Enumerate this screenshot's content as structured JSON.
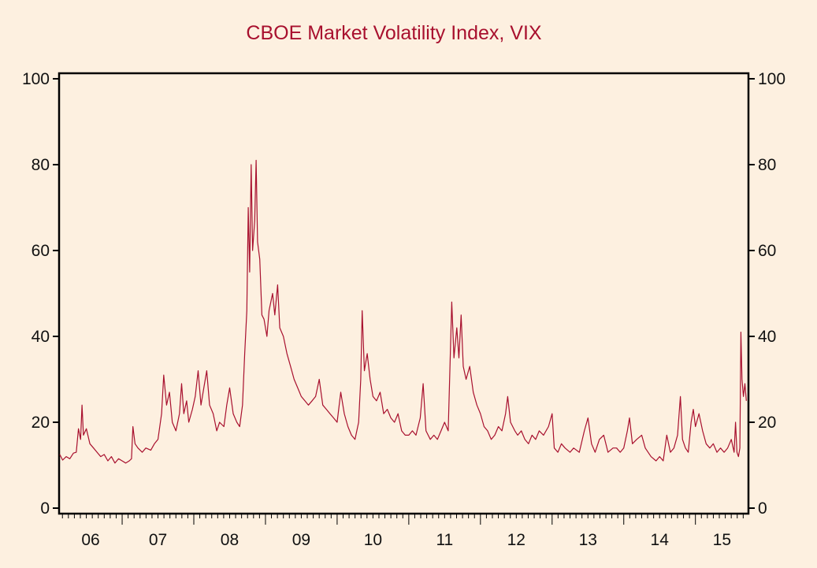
{
  "chart_data": {
    "type": "line",
    "title": "CBOE Market Volatility Index, VIX",
    "xlabel": "",
    "ylabel": "",
    "ylim": [
      0,
      100
    ],
    "yticks": [
      0,
      20,
      40,
      60,
      80,
      100
    ],
    "xlim": [
      2006.12,
      2015.74
    ],
    "xtick_labels": [
      "06",
      "07",
      "08",
      "09",
      "10",
      "11",
      "12",
      "13",
      "14",
      "15"
    ],
    "grid": false,
    "line_color": "#a8102e",
    "series": [
      {
        "name": "VIX",
        "points": [
          [
            2006.13,
            12.5
          ],
          [
            2006.17,
            11.2
          ],
          [
            2006.22,
            12.0
          ],
          [
            2006.27,
            11.5
          ],
          [
            2006.32,
            12.8
          ],
          [
            2006.36,
            13.0
          ],
          [
            2006.39,
            18.5
          ],
          [
            2006.42,
            16
          ],
          [
            2006.44,
            24
          ],
          [
            2006.46,
            17
          ],
          [
            2006.5,
            18.5
          ],
          [
            2006.55,
            15
          ],
          [
            2006.6,
            14
          ],
          [
            2006.65,
            13
          ],
          [
            2006.7,
            12
          ],
          [
            2006.75,
            12.5
          ],
          [
            2006.8,
            11
          ],
          [
            2006.85,
            12
          ],
          [
            2006.9,
            10.5
          ],
          [
            2006.95,
            11.5
          ],
          [
            2007.0,
            11
          ],
          [
            2007.05,
            10.5
          ],
          [
            2007.1,
            11
          ],
          [
            2007.13,
            11.5
          ],
          [
            2007.15,
            19
          ],
          [
            2007.18,
            15
          ],
          [
            2007.22,
            14
          ],
          [
            2007.28,
            13
          ],
          [
            2007.33,
            14
          ],
          [
            2007.4,
            13.5
          ],
          [
            2007.45,
            15
          ],
          [
            2007.5,
            16
          ],
          [
            2007.55,
            22
          ],
          [
            2007.58,
            31
          ],
          [
            2007.62,
            24
          ],
          [
            2007.66,
            27
          ],
          [
            2007.7,
            20
          ],
          [
            2007.75,
            18
          ],
          [
            2007.8,
            22
          ],
          [
            2007.83,
            29
          ],
          [
            2007.86,
            22
          ],
          [
            2007.9,
            25
          ],
          [
            2007.93,
            20
          ],
          [
            2007.98,
            23
          ],
          [
            2008.02,
            26
          ],
          [
            2008.06,
            32
          ],
          [
            2008.1,
            24
          ],
          [
            2008.14,
            28
          ],
          [
            2008.18,
            32
          ],
          [
            2008.22,
            24
          ],
          [
            2008.27,
            22
          ],
          [
            2008.32,
            18
          ],
          [
            2008.36,
            20
          ],
          [
            2008.42,
            19
          ],
          [
            2008.46,
            24
          ],
          [
            2008.5,
            28
          ],
          [
            2008.55,
            22
          ],
          [
            2008.6,
            20
          ],
          [
            2008.64,
            19
          ],
          [
            2008.68,
            24
          ],
          [
            2008.71,
            36
          ],
          [
            2008.74,
            46
          ],
          [
            2008.76,
            70
          ],
          [
            2008.78,
            55
          ],
          [
            2008.8,
            80
          ],
          [
            2008.82,
            60
          ],
          [
            2008.85,
            67
          ],
          [
            2008.87,
            81
          ],
          [
            2008.89,
            62
          ],
          [
            2008.92,
            58
          ],
          [
            2008.95,
            45
          ],
          [
            2008.98,
            44
          ],
          [
            2009.02,
            40
          ],
          [
            2009.05,
            46
          ],
          [
            2009.1,
            50
          ],
          [
            2009.13,
            45
          ],
          [
            2009.17,
            52
          ],
          [
            2009.2,
            42
          ],
          [
            2009.25,
            40
          ],
          [
            2009.3,
            36
          ],
          [
            2009.35,
            33
          ],
          [
            2009.4,
            30
          ],
          [
            2009.45,
            28
          ],
          [
            2009.5,
            26
          ],
          [
            2009.55,
            25
          ],
          [
            2009.6,
            24
          ],
          [
            2009.65,
            25
          ],
          [
            2009.7,
            26
          ],
          [
            2009.75,
            30
          ],
          [
            2009.8,
            24
          ],
          [
            2009.85,
            23
          ],
          [
            2009.9,
            22
          ],
          [
            2009.95,
            21
          ],
          [
            2010.0,
            20
          ],
          [
            2010.05,
            27
          ],
          [
            2010.1,
            22
          ],
          [
            2010.15,
            19
          ],
          [
            2010.2,
            17
          ],
          [
            2010.25,
            16
          ],
          [
            2010.3,
            20
          ],
          [
            2010.33,
            30
          ],
          [
            2010.35,
            46
          ],
          [
            2010.38,
            32
          ],
          [
            2010.42,
            36
          ],
          [
            2010.46,
            30
          ],
          [
            2010.5,
            26
          ],
          [
            2010.55,
            25
          ],
          [
            2010.6,
            27
          ],
          [
            2010.65,
            22
          ],
          [
            2010.7,
            23
          ],
          [
            2010.75,
            21
          ],
          [
            2010.8,
            20
          ],
          [
            2010.85,
            22
          ],
          [
            2010.9,
            18
          ],
          [
            2010.95,
            17
          ],
          [
            2011.0,
            17
          ],
          [
            2011.05,
            18
          ],
          [
            2011.1,
            17
          ],
          [
            2011.16,
            21
          ],
          [
            2011.2,
            29
          ],
          [
            2011.24,
            18
          ],
          [
            2011.3,
            16
          ],
          [
            2011.35,
            17
          ],
          [
            2011.4,
            16
          ],
          [
            2011.45,
            18
          ],
          [
            2011.5,
            20
          ],
          [
            2011.55,
            18
          ],
          [
            2011.58,
            36
          ],
          [
            2011.6,
            48
          ],
          [
            2011.63,
            35
          ],
          [
            2011.67,
            42
          ],
          [
            2011.7,
            35
          ],
          [
            2011.73,
            45
          ],
          [
            2011.76,
            33
          ],
          [
            2011.8,
            30
          ],
          [
            2011.85,
            33
          ],
          [
            2011.9,
            27
          ],
          [
            2011.95,
            24
          ],
          [
            2012.0,
            22
          ],
          [
            2012.05,
            19
          ],
          [
            2012.1,
            18
          ],
          [
            2012.15,
            16
          ],
          [
            2012.2,
            17
          ],
          [
            2012.25,
            19
          ],
          [
            2012.3,
            18
          ],
          [
            2012.35,
            22
          ],
          [
            2012.38,
            26
          ],
          [
            2012.42,
            20
          ],
          [
            2012.48,
            18
          ],
          [
            2012.52,
            17
          ],
          [
            2012.57,
            18
          ],
          [
            2012.62,
            16
          ],
          [
            2012.67,
            15
          ],
          [
            2012.72,
            17
          ],
          [
            2012.77,
            16
          ],
          [
            2012.82,
            18
          ],
          [
            2012.88,
            17
          ],
          [
            2012.95,
            19
          ],
          [
            2013.0,
            22
          ],
          [
            2013.03,
            14
          ],
          [
            2013.08,
            13
          ],
          [
            2013.13,
            15
          ],
          [
            2013.18,
            14
          ],
          [
            2013.25,
            13
          ],
          [
            2013.3,
            14
          ],
          [
            2013.38,
            13
          ],
          [
            2013.45,
            18
          ],
          [
            2013.5,
            21
          ],
          [
            2013.55,
            15
          ],
          [
            2013.6,
            13
          ],
          [
            2013.66,
            16
          ],
          [
            2013.72,
            17
          ],
          [
            2013.78,
            13
          ],
          [
            2013.85,
            14
          ],
          [
            2013.9,
            14
          ],
          [
            2013.95,
            13
          ],
          [
            2014.0,
            14
          ],
          [
            2014.05,
            18
          ],
          [
            2014.08,
            21
          ],
          [
            2014.12,
            15
          ],
          [
            2014.18,
            16
          ],
          [
            2014.25,
            17
          ],
          [
            2014.3,
            14
          ],
          [
            2014.38,
            12
          ],
          [
            2014.45,
            11
          ],
          [
            2014.5,
            12
          ],
          [
            2014.55,
            11
          ],
          [
            2014.6,
            17
          ],
          [
            2014.65,
            13
          ],
          [
            2014.7,
            14
          ],
          [
            2014.75,
            17
          ],
          [
            2014.79,
            26
          ],
          [
            2014.82,
            16
          ],
          [
            2014.86,
            14
          ],
          [
            2014.9,
            13
          ],
          [
            2014.94,
            20
          ],
          [
            2014.97,
            23
          ],
          [
            2015.0,
            19
          ],
          [
            2015.05,
            22
          ],
          [
            2015.1,
            18
          ],
          [
            2015.15,
            15
          ],
          [
            2015.2,
            14
          ],
          [
            2015.25,
            15
          ],
          [
            2015.3,
            13
          ],
          [
            2015.35,
            14
          ],
          [
            2015.4,
            13
          ],
          [
            2015.45,
            14
          ],
          [
            2015.5,
            16
          ],
          [
            2015.54,
            13
          ],
          [
            2015.56,
            20
          ],
          [
            2015.58,
            13
          ],
          [
            2015.6,
            12
          ],
          [
            2015.62,
            14
          ],
          [
            2015.635,
            41
          ],
          [
            2015.65,
            30
          ],
          [
            2015.67,
            26
          ],
          [
            2015.69,
            29
          ],
          [
            2015.71,
            25
          ]
        ]
      }
    ]
  }
}
